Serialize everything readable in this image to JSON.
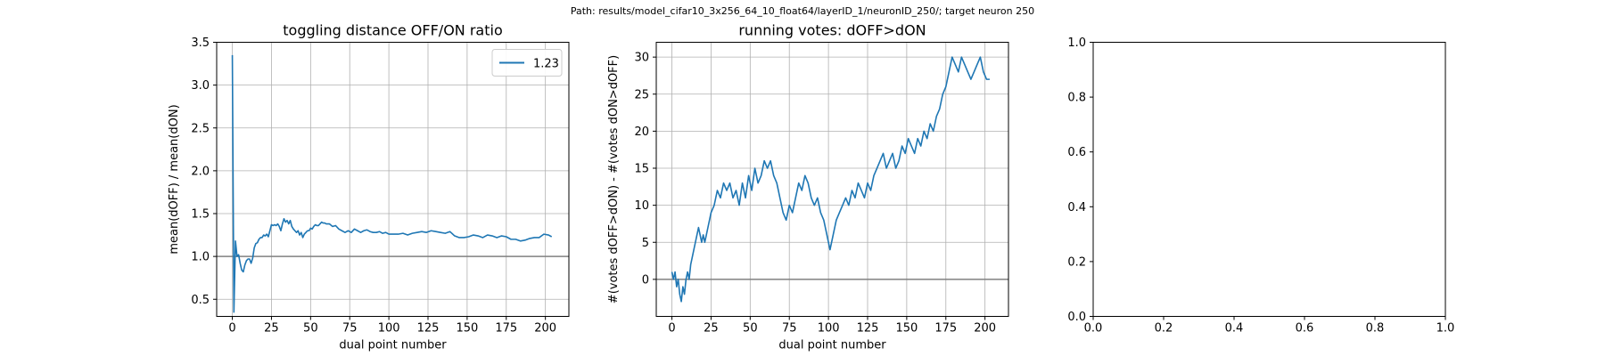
{
  "figure": {
    "suptitle": "Path: results/model_cifar10_3x256_64_10_float64/layerID_1/neuronID_250/; target neuron 250"
  },
  "chart_data": [
    {
      "type": "line",
      "title": "toggling distance OFF/ON ratio",
      "xlabel": "dual point number",
      "ylabel": "mean(dOFF) / mean(dON)",
      "xlim": [
        -10,
        215
      ],
      "ylim": [
        0.3,
        3.5
      ],
      "xticks": [
        "0",
        "25",
        "50",
        "75",
        "100",
        "125",
        "150",
        "175",
        "200"
      ],
      "xtick_values": [
        0,
        25,
        50,
        75,
        100,
        125,
        150,
        175,
        200
      ],
      "yticks": [
        "0.5",
        "1.0",
        "1.5",
        "2.0",
        "2.5",
        "3.0",
        "3.5"
      ],
      "ytick_values": [
        0.5,
        1.0,
        1.5,
        2.0,
        2.5,
        3.0,
        3.5
      ],
      "grid": true,
      "legend": {
        "location": "upper right",
        "entries": [
          "1.23"
        ]
      },
      "reference_line": {
        "y": 1.0,
        "color": "#808080"
      },
      "series": [
        {
          "name": "1.23",
          "color": "#1f77b4",
          "x": [
            0,
            1,
            2,
            3,
            4,
            5,
            6,
            7,
            8,
            9,
            10,
            11,
            12,
            13,
            14,
            15,
            16,
            17,
            18,
            19,
            20,
            21,
            22,
            23,
            24,
            25,
            26,
            27,
            28,
            29,
            30,
            31,
            32,
            33,
            34,
            35,
            36,
            37,
            38,
            39,
            40,
            41,
            42,
            43,
            44,
            45,
            46,
            47,
            48,
            49,
            50,
            51,
            52,
            53,
            54,
            55,
            56,
            57,
            58,
            59,
            60,
            62,
            64,
            66,
            68,
            70,
            72,
            74,
            76,
            78,
            80,
            82,
            84,
            86,
            88,
            90,
            92,
            94,
            96,
            98,
            100,
            103,
            106,
            109,
            112,
            115,
            118,
            121,
            124,
            127,
            130,
            133,
            136,
            139,
            142,
            145,
            148,
            151,
            154,
            157,
            160,
            163,
            166,
            169,
            172,
            175,
            178,
            181,
            184,
            187,
            190,
            193,
            196,
            199,
            202,
            204
          ],
          "y": [
            3.35,
            0.35,
            1.18,
            1.0,
            1.02,
            0.92,
            0.84,
            0.82,
            0.9,
            0.95,
            0.97,
            0.97,
            0.92,
            0.98,
            1.1,
            1.15,
            1.16,
            1.2,
            1.22,
            1.22,
            1.25,
            1.24,
            1.26,
            1.23,
            1.3,
            1.37,
            1.36,
            1.37,
            1.36,
            1.38,
            1.35,
            1.3,
            1.38,
            1.44,
            1.4,
            1.42,
            1.38,
            1.42,
            1.35,
            1.32,
            1.3,
            1.28,
            1.3,
            1.25,
            1.28,
            1.22,
            1.26,
            1.28,
            1.3,
            1.3,
            1.33,
            1.32,
            1.35,
            1.37,
            1.36,
            1.36,
            1.38,
            1.4,
            1.39,
            1.39,
            1.38,
            1.38,
            1.35,
            1.36,
            1.32,
            1.3,
            1.28,
            1.3,
            1.28,
            1.32,
            1.3,
            1.28,
            1.3,
            1.31,
            1.29,
            1.28,
            1.28,
            1.29,
            1.27,
            1.28,
            1.26,
            1.26,
            1.26,
            1.27,
            1.25,
            1.27,
            1.28,
            1.29,
            1.28,
            1.3,
            1.29,
            1.28,
            1.27,
            1.29,
            1.24,
            1.22,
            1.22,
            1.23,
            1.25,
            1.24,
            1.22,
            1.25,
            1.24,
            1.22,
            1.24,
            1.23,
            1.2,
            1.2,
            1.18,
            1.19,
            1.21,
            1.22,
            1.22,
            1.26,
            1.25,
            1.23
          ]
        }
      ]
    },
    {
      "type": "line",
      "title": "running votes: dOFF>dON",
      "xlabel": "dual point number",
      "ylabel": "#(votes dOFF>dON) - #(votes dON>dOFF)",
      "xlim": [
        -10,
        215
      ],
      "ylim": [
        -5,
        32
      ],
      "xticks": [
        "0",
        "25",
        "50",
        "75",
        "100",
        "125",
        "150",
        "175",
        "200"
      ],
      "xtick_values": [
        0,
        25,
        50,
        75,
        100,
        125,
        150,
        175,
        200
      ],
      "yticks": [
        "0",
        "5",
        "10",
        "15",
        "20",
        "25",
        "30"
      ],
      "ytick_values": [
        0,
        5,
        10,
        15,
        20,
        25,
        30
      ],
      "grid": true,
      "reference_line": {
        "y": 0,
        "color": "#808080"
      },
      "series": [
        {
          "color": "#1f77b4",
          "x": [
            0,
            1,
            2,
            3,
            4,
            5,
            6,
            7,
            8,
            9,
            10,
            11,
            12,
            13,
            14,
            15,
            16,
            17,
            18,
            19,
            20,
            21,
            22,
            23,
            24,
            25,
            27,
            29,
            31,
            33,
            35,
            37,
            39,
            41,
            43,
            45,
            47,
            49,
            51,
            53,
            55,
            57,
            59,
            61,
            63,
            65,
            67,
            69,
            71,
            73,
            75,
            77,
            79,
            81,
            83,
            85,
            87,
            89,
            91,
            93,
            95,
            97,
            99,
            101,
            103,
            105,
            107,
            109,
            111,
            113,
            115,
            117,
            119,
            121,
            123,
            125,
            127,
            129,
            131,
            133,
            135,
            137,
            139,
            141,
            143,
            145,
            147,
            149,
            151,
            153,
            155,
            157,
            159,
            161,
            163,
            165,
            167,
            169,
            171,
            173,
            175,
            177,
            179,
            181,
            183,
            185,
            187,
            189,
            191,
            193,
            195,
            197,
            199,
            201,
            203
          ],
          "y": [
            1,
            0,
            1,
            -1,
            0,
            -2,
            -3,
            -1,
            -2,
            0,
            1,
            0,
            2,
            3,
            4,
            5,
            6,
            7,
            6,
            5,
            6,
            5,
            6,
            7,
            8,
            9,
            10,
            12,
            11,
            13,
            12,
            13,
            11,
            12,
            10,
            13,
            11,
            14,
            12,
            15,
            13,
            14,
            16,
            15,
            16,
            14,
            13,
            11,
            9,
            8,
            10,
            9,
            11,
            13,
            12,
            14,
            13,
            11,
            10,
            11,
            9,
            8,
            6,
            4,
            6,
            8,
            9,
            10,
            11,
            10,
            12,
            11,
            13,
            12,
            11,
            13,
            12,
            14,
            15,
            16,
            17,
            15,
            16,
            17,
            15,
            16,
            18,
            17,
            19,
            18,
            17,
            19,
            18,
            20,
            19,
            21,
            20,
            22,
            23,
            25,
            26,
            28,
            30,
            29,
            28,
            30,
            29,
            28,
            27,
            28,
            29,
            30,
            28,
            27,
            27
          ]
        }
      ]
    },
    {
      "type": "line",
      "title": "",
      "xlim": [
        0,
        1
      ],
      "ylim": [
        0,
        1
      ],
      "xticks": [
        "0.0",
        "0.2",
        "0.4",
        "0.6",
        "0.8",
        "1.0"
      ],
      "xtick_values": [
        0,
        0.2,
        0.4,
        0.6,
        0.8,
        1.0
      ],
      "yticks": [
        "0.0",
        "0.2",
        "0.4",
        "0.6",
        "0.8",
        "1.0"
      ],
      "ytick_values": [
        0,
        0.2,
        0.4,
        0.6,
        0.8,
        1.0
      ],
      "grid": false,
      "series": []
    }
  ]
}
